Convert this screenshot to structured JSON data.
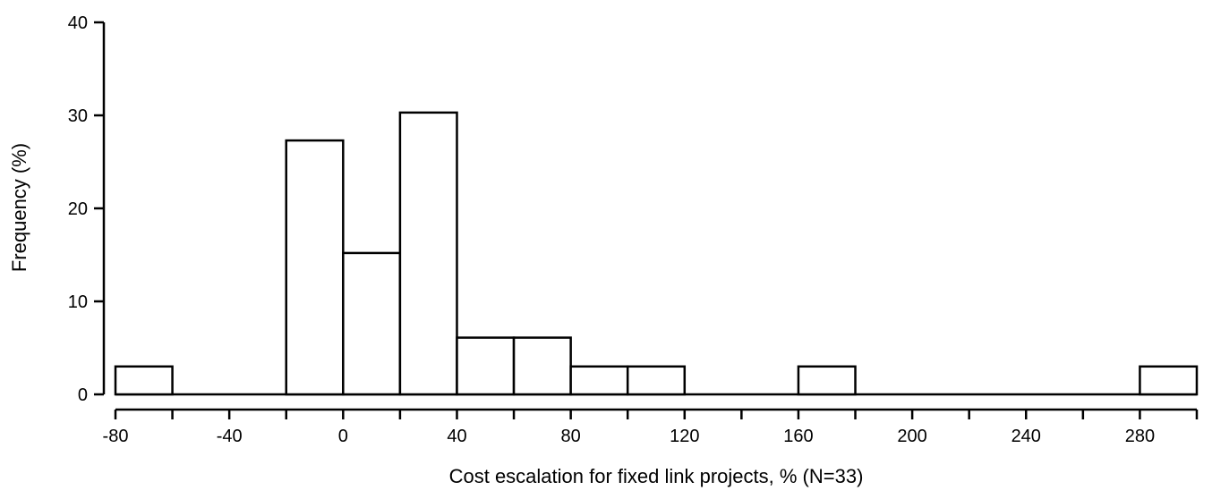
{
  "chart_data": {
    "type": "bar",
    "title": "",
    "xlabel": "Cost escalation for fixed link projects, % (N=33)",
    "ylabel": "Frequency (%)",
    "xlim": [
      -80,
      300
    ],
    "ylim": [
      0,
      40
    ],
    "x_ticks": [
      -80,
      -60,
      -40,
      -20,
      0,
      20,
      40,
      60,
      80,
      100,
      120,
      140,
      160,
      180,
      200,
      220,
      240,
      260,
      280,
      300
    ],
    "x_tick_labels": [
      {
        "value": -80,
        "label": "-80"
      },
      {
        "value": -40,
        "label": "-40"
      },
      {
        "value": 0,
        "label": "0"
      },
      {
        "value": 40,
        "label": "40"
      },
      {
        "value": 80,
        "label": "80"
      },
      {
        "value": 120,
        "label": "120"
      },
      {
        "value": 160,
        "label": "160"
      },
      {
        "value": 200,
        "label": "200"
      },
      {
        "value": 240,
        "label": "240"
      },
      {
        "value": 280,
        "label": "280"
      }
    ],
    "y_ticks": [
      {
        "value": 0,
        "label": "0"
      },
      {
        "value": 10,
        "label": "10"
      },
      {
        "value": 20,
        "label": "20"
      },
      {
        "value": 30,
        "label": "30"
      },
      {
        "value": 40,
        "label": "40"
      }
    ],
    "bins": [
      {
        "start": -80,
        "end": -60,
        "value": 3.0
      },
      {
        "start": -60,
        "end": -40,
        "value": 0
      },
      {
        "start": -40,
        "end": -20,
        "value": 0
      },
      {
        "start": -20,
        "end": 0,
        "value": 27.3
      },
      {
        "start": 0,
        "end": 20,
        "value": 15.2
      },
      {
        "start": 20,
        "end": 40,
        "value": 30.3
      },
      {
        "start": 40,
        "end": 60,
        "value": 6.1
      },
      {
        "start": 60,
        "end": 80,
        "value": 6.1
      },
      {
        "start": 80,
        "end": 100,
        "value": 3.0
      },
      {
        "start": 100,
        "end": 120,
        "value": 3.0
      },
      {
        "start": 120,
        "end": 140,
        "value": 0
      },
      {
        "start": 140,
        "end": 160,
        "value": 0
      },
      {
        "start": 160,
        "end": 180,
        "value": 3.0
      },
      {
        "start": 180,
        "end": 200,
        "value": 0
      },
      {
        "start": 200,
        "end": 220,
        "value": 0
      },
      {
        "start": 220,
        "end": 240,
        "value": 0
      },
      {
        "start": 240,
        "end": 260,
        "value": 0
      },
      {
        "start": 260,
        "end": 280,
        "value": 0
      },
      {
        "start": 280,
        "end": 300,
        "value": 3.0
      }
    ],
    "grid": false,
    "colors": {
      "bar_fill": "#ffffff",
      "bar_stroke": "#000000",
      "highlight_tick_label": "#555555"
    }
  }
}
